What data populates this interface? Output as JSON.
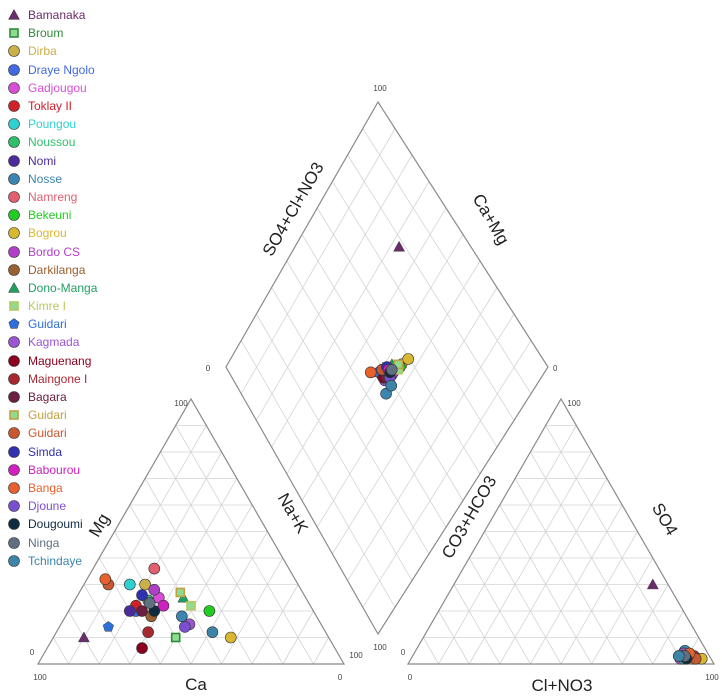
{
  "chart_data": {
    "type": "scatter",
    "subtype": "piper-diagram",
    "title": "",
    "axes": {
      "cation": {
        "bottom": "Ca",
        "left": "Mg",
        "right": "Na+K"
      },
      "anion": {
        "bottom": "Cl+NO3",
        "left": "CO3+HCO3",
        "right": "SO4"
      },
      "diamond": {
        "left": "SO4+Cl+NO3",
        "right": "Ca+Mg"
      }
    },
    "ticks": {
      "cation": {
        "left_top": "100",
        "left_bottom": "0",
        "bottom_left": "100",
        "bottom_right": "0",
        "right_bottom": "100"
      },
      "anion": {
        "left_top": "0",
        "bottom_left": "0",
        "bottom_right": "100",
        "right_top": "100",
        "left_top2": "100"
      },
      "diamond": {
        "top": "100",
        "left": "0",
        "right": "0",
        "bottom": "100"
      }
    },
    "grid": true,
    "legend_position": "top-left",
    "series": [
      {
        "name": "Bamanaka",
        "color": "#6b2c6b",
        "marker": "triangle",
        "cation": [
          80,
          10
        ],
        "anion": [
          65,
          30
        ],
        "diamond": [
          75,
          70
        ]
      },
      {
        "name": "Broum",
        "color": "#2e8b3a",
        "marker": "square",
        "cation": [
          50,
          10
        ],
        "anion": [
          92,
          2
        ],
        "diamond": [
          50,
          50
        ]
      },
      {
        "name": "Dirba",
        "color": "#c9b04a",
        "marker": "circle",
        "cation": [
          50,
          30
        ],
        "anion": [
          92,
          2
        ],
        "diamond": [
          55,
          46
        ]
      },
      {
        "name": "Draye Ngolo",
        "color": "#4169e1",
        "marker": "circle",
        "cation": [
          58,
          20
        ],
        "anion": [
          90,
          3
        ],
        "diamond": [
          48,
          50
        ]
      },
      {
        "name": "Gadjougou",
        "color": "#d94ed9",
        "marker": "circle",
        "cation": [
          48,
          25
        ],
        "anion": [
          88,
          2
        ],
        "diamond": [
          52,
          48
        ]
      },
      {
        "name": "Toklay II",
        "color": "#d0202a",
        "marker": "circle",
        "cation": [
          57,
          22
        ],
        "anion": [
          91,
          3
        ],
        "diamond": [
          50,
          47
        ]
      },
      {
        "name": "Poungou",
        "color": "#2fd0d0",
        "marker": "circle",
        "cation": [
          55,
          30
        ],
        "anion": [
          89,
          2
        ],
        "diamond": [
          49,
          48
        ]
      },
      {
        "name": "Noussou",
        "color": "#2fbf6b",
        "marker": "circle",
        "cation": [
          52,
          24
        ],
        "anion": [
          87,
          3
        ],
        "diamond": [
          50,
          49
        ]
      },
      {
        "name": "Nomi",
        "color": "#4b2a9b",
        "marker": "circle",
        "cation": [
          60,
          20
        ],
        "anion": [
          89,
          4
        ],
        "diamond": [
          47,
          50
        ]
      },
      {
        "name": "Nosse",
        "color": "#3b86b0",
        "marker": "circle",
        "cation": [
          44,
          18
        ],
        "anion": [
          88,
          5
        ],
        "diamond": [
          45,
          45
        ]
      },
      {
        "name": "Namreng",
        "color": "#e06070",
        "marker": "circle",
        "cation": [
          44,
          36
        ],
        "anion": [
          93,
          2
        ],
        "diamond": [
          48,
          51
        ]
      },
      {
        "name": "Bekeuni",
        "color": "#22cc22",
        "marker": "circle",
        "cation": [
          34,
          20
        ],
        "anion": [
          90,
          3
        ],
        "diamond": [
          54,
          46
        ]
      },
      {
        "name": "Bogrou",
        "color": "#d8b830",
        "marker": "circle",
        "cation": [
          32,
          10
        ],
        "anion": [
          95,
          2
        ],
        "diamond": [
          58,
          45
        ]
      },
      {
        "name": "Bordo CS",
        "color": "#b040c8",
        "marker": "circle",
        "cation": [
          48,
          28
        ],
        "anion": [
          91,
          3
        ],
        "diamond": [
          51,
          47
        ]
      },
      {
        "name": "Darkilanga",
        "color": "#9a6030",
        "marker": "circle",
        "cation": [
          54,
          18
        ],
        "anion": [
          90,
          2
        ],
        "diamond": [
          49,
          49
        ]
      },
      {
        "name": "Dono-Manga",
        "color": "#20a060",
        "marker": "triangle",
        "cation": [
          40,
          25
        ],
        "anion": [
          87,
          4
        ],
        "diamond": [
          52,
          49
        ]
      },
      {
        "name": "Kimre I",
        "color": "#b8c860",
        "marker": "square",
        "cation": [
          39,
          22
        ],
        "anion": [
          89,
          3
        ],
        "diamond": [
          53,
          46
        ]
      },
      {
        "name": "Guidari",
        "color": "#2d6fd8",
        "marker": "pentagon",
        "cation": [
          70,
          14
        ],
        "anion": [
          88,
          3
        ],
        "diamond": [
          46,
          52
        ]
      },
      {
        "name": "Kagmada",
        "color": "#9b55d0",
        "marker": "circle",
        "cation": [
          43,
          15
        ],
        "anion": [
          88,
          4
        ],
        "diamond": [
          47,
          48
        ]
      },
      {
        "name": "Maguenang",
        "color": "#8b0020",
        "marker": "circle",
        "cation": [
          63,
          6
        ],
        "anion": [
          89,
          3
        ],
        "diamond": [
          47,
          49
        ]
      },
      {
        "name": "Maingone I",
        "color": "#a82830",
        "marker": "circle",
        "cation": [
          58,
          12
        ],
        "anion": [
          92,
          3
        ],
        "diamond": [
          49,
          49
        ]
      },
      {
        "name": "Bagara",
        "color": "#6a2040",
        "marker": "circle",
        "cation": [
          56,
          20
        ],
        "anion": [
          90,
          2
        ],
        "diamond": [
          48,
          48
        ]
      },
      {
        "name": "Guidari",
        "color": "#c0a040",
        "marker": "square",
        "cation": [
          40,
          27
        ],
        "anion": [
          91,
          2
        ],
        "diamond": [
          54,
          47
        ]
      },
      {
        "name": "Guidari",
        "color": "#c85830",
        "marker": "circle",
        "cation": [
          62,
          30
        ],
        "anion": [
          93,
          2
        ],
        "diamond": [
          48,
          51
        ]
      },
      {
        "name": "Simda",
        "color": "#3030b0",
        "marker": "circle",
        "cation": [
          53,
          26
        ],
        "anion": [
          88,
          3
        ],
        "diamond": [
          50,
          50
        ]
      },
      {
        "name": "Babourou",
        "color": "#d020c0",
        "marker": "circle",
        "cation": [
          48,
          22
        ],
        "anion": [
          90,
          3
        ],
        "diamond": [
          50,
          49
        ]
      },
      {
        "name": "Banga",
        "color": "#e8602c",
        "marker": "circle",
        "cation": [
          62,
          32
        ],
        "anion": [
          90,
          4
        ],
        "diamond": [
          44,
          54
        ]
      },
      {
        "name": "Djoune",
        "color": "#7b50d0",
        "marker": "circle",
        "cation": [
          45,
          14
        ],
        "anion": [
          88,
          3
        ],
        "diamond": [
          49,
          47
        ]
      },
      {
        "name": "Dougoumi",
        "color": "#102a40",
        "marker": "circle",
        "cation": [
          52,
          20
        ],
        "anion": [
          90,
          2
        ],
        "diamond": [
          50,
          48
        ]
      },
      {
        "name": "Ninga",
        "color": "#607080",
        "marker": "circle",
        "cation": [
          52,
          23
        ],
        "anion": [
          89,
          3
        ],
        "diamond": [
          51,
          48
        ]
      },
      {
        "name": "Tchindaye",
        "color": "#3c84a8",
        "marker": "circle",
        "cation": [
          37,
          12
        ],
        "anion": [
          87,
          3
        ],
        "diamond": [
          48,
          45
        ]
      }
    ]
  }
}
